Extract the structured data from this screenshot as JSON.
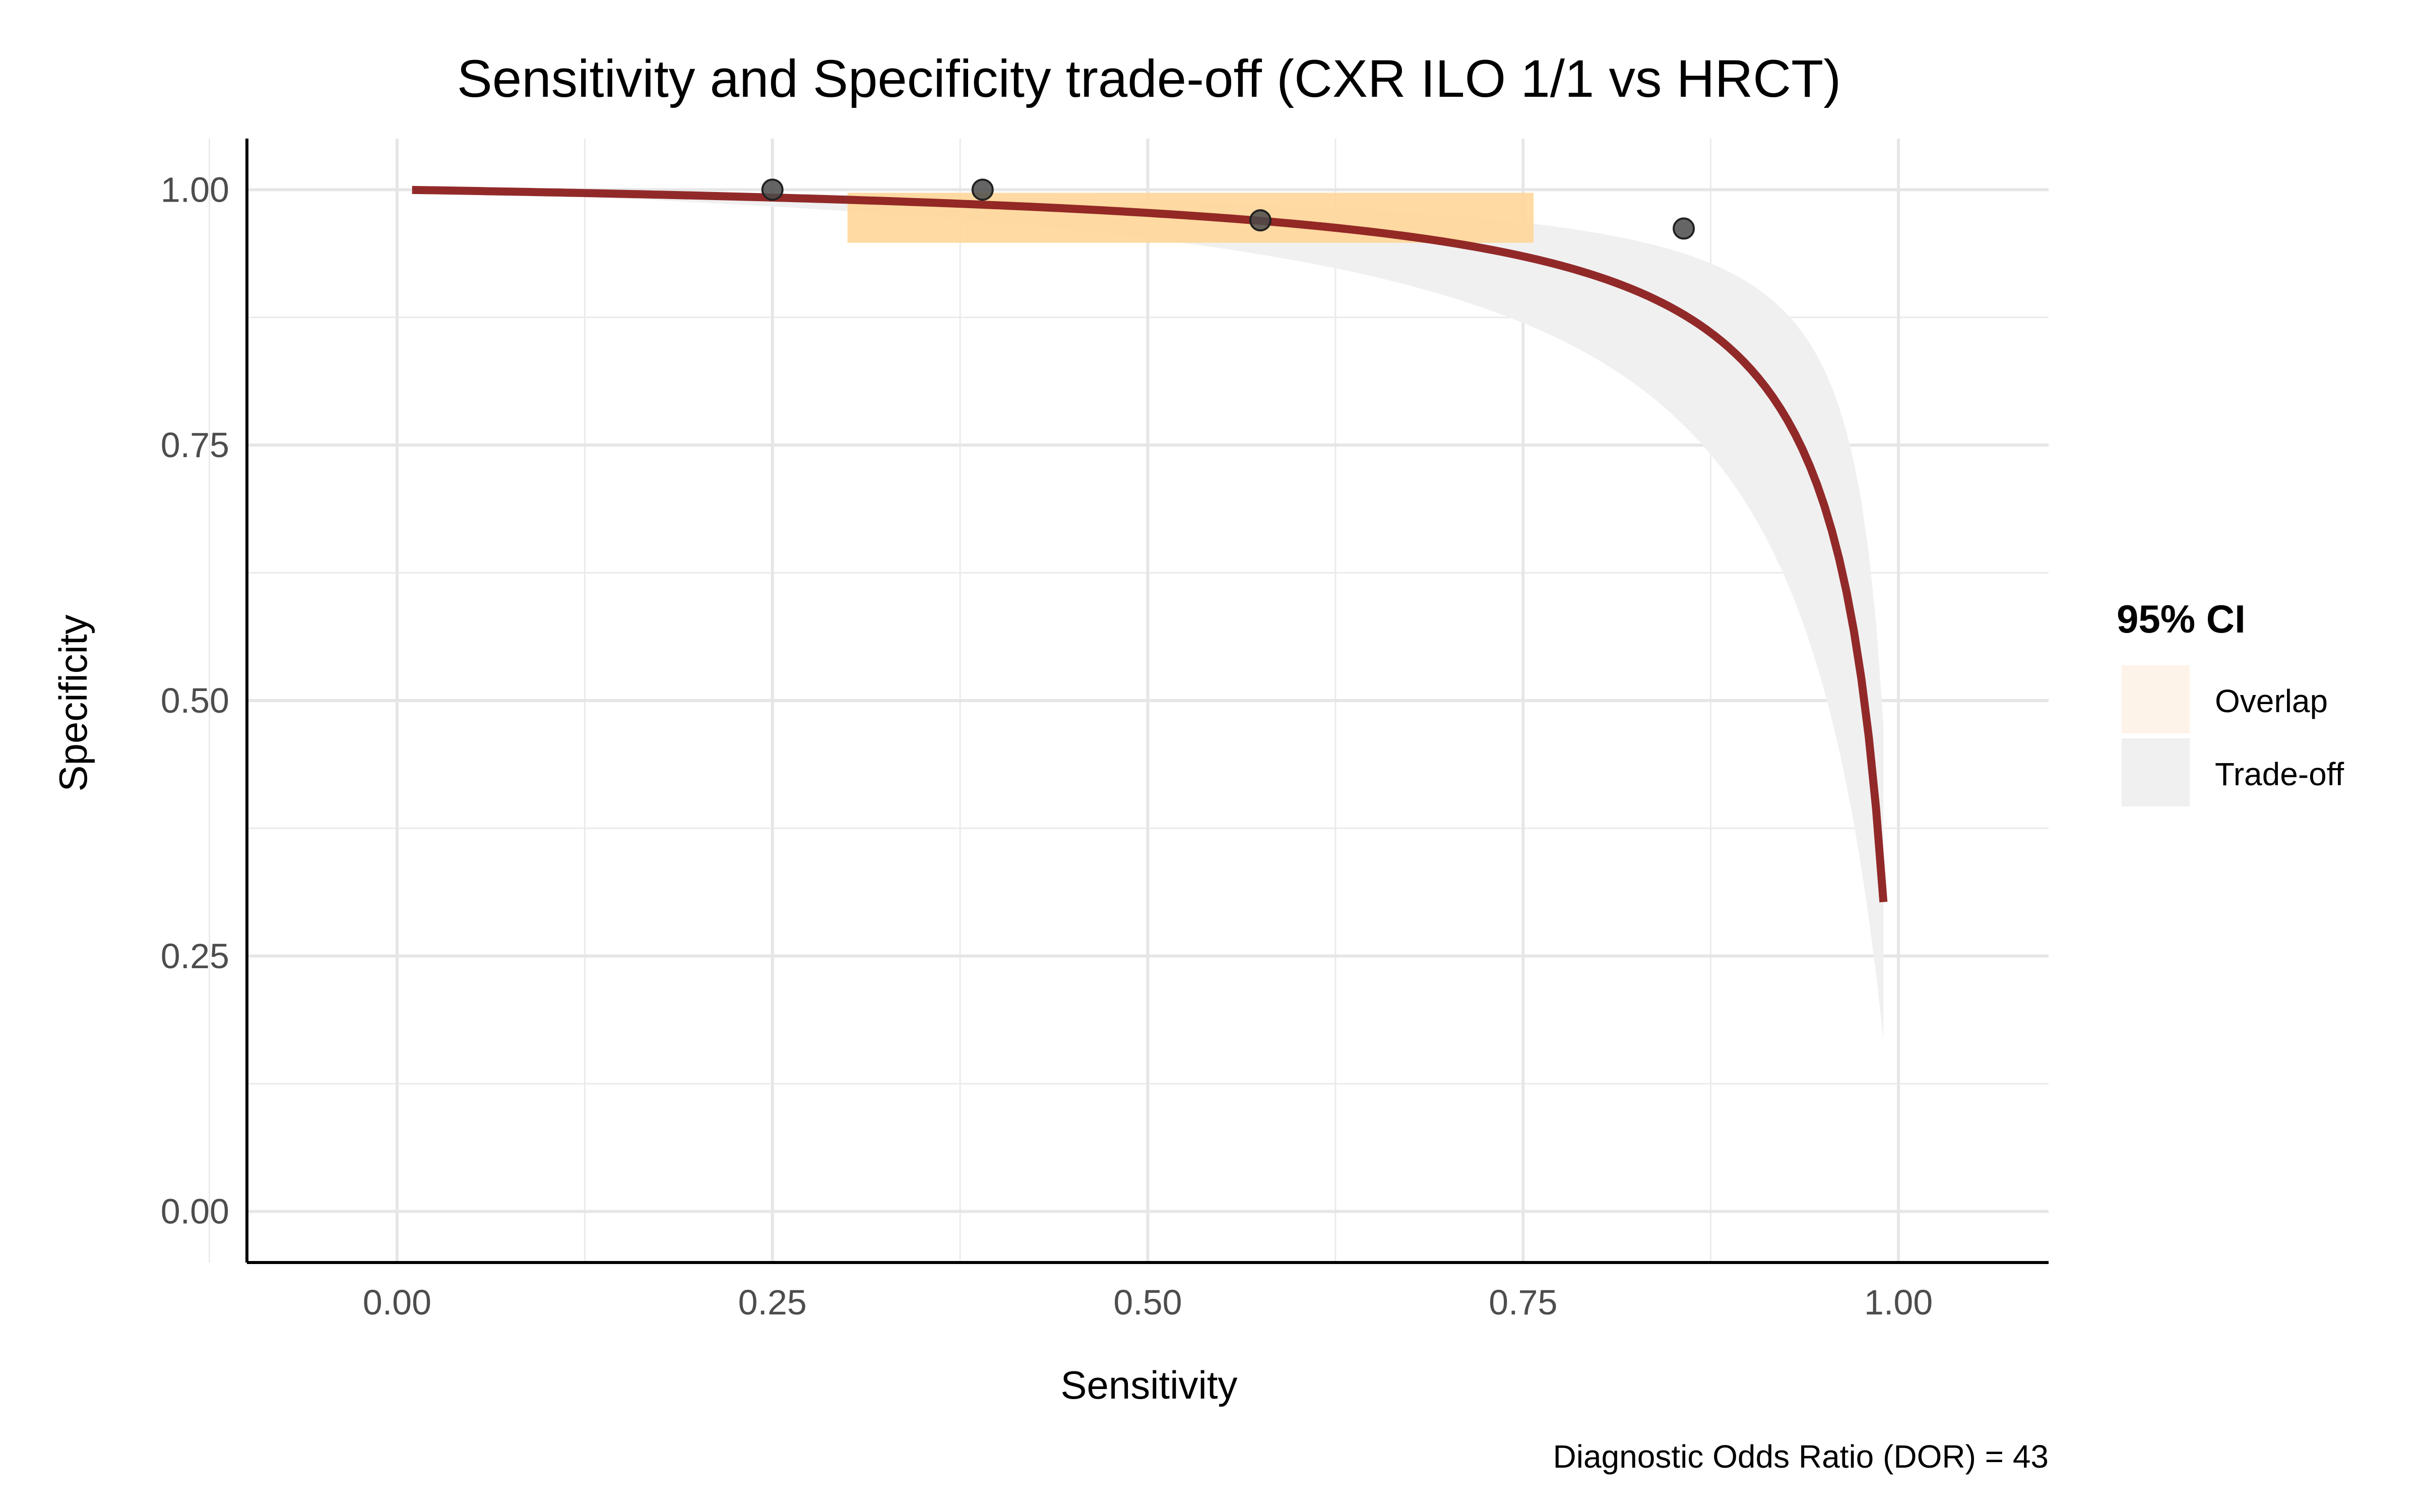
{
  "chart_data": {
    "type": "line",
    "title": "Sensitivity and Specificity trade-off (CXR ILO 1/1 vs HRCT)",
    "xlabel": "Sensitivity",
    "ylabel": "Specificity",
    "xlim": [
      -0.1,
      1.1
    ],
    "ylim": [
      -0.05,
      1.05
    ],
    "x_ticks": [
      0.0,
      0.25,
      0.5,
      0.75,
      1.0
    ],
    "x_tick_labels": [
      "0.00",
      "0.25",
      "0.50",
      "0.75",
      "1.00"
    ],
    "y_ticks": [
      0.0,
      0.25,
      0.5,
      0.75,
      1.0
    ],
    "y_tick_labels": [
      "0.00",
      "0.25",
      "0.50",
      "0.75",
      "1.00"
    ],
    "grid": true,
    "points": [
      {
        "x": 0.25,
        "y": 1.0
      },
      {
        "x": 0.39,
        "y": 1.0
      },
      {
        "x": 0.575,
        "y": 0.97
      },
      {
        "x": 0.857,
        "y": 0.962
      }
    ],
    "curve": {
      "dor": 43,
      "x_range": [
        0.01,
        0.99
      ],
      "color": "#8b1a1a"
    },
    "trade_off_band": {
      "dor_low": 20,
      "dor_high": 90,
      "color": "#f0f0f0"
    },
    "overlap_rect": {
      "x": [
        0.3,
        0.757
      ],
      "y": [
        0.948,
        0.997
      ],
      "color": "#ffd699"
    },
    "legend": {
      "title": "95% CI",
      "position": "right",
      "items": [
        {
          "label": "Overlap",
          "color": "#fdf3e8"
        },
        {
          "label": "Trade-off",
          "color": "#f0f0f0"
        }
      ]
    },
    "caption": "Diagnostic Odds Ratio (DOR) =  43"
  }
}
